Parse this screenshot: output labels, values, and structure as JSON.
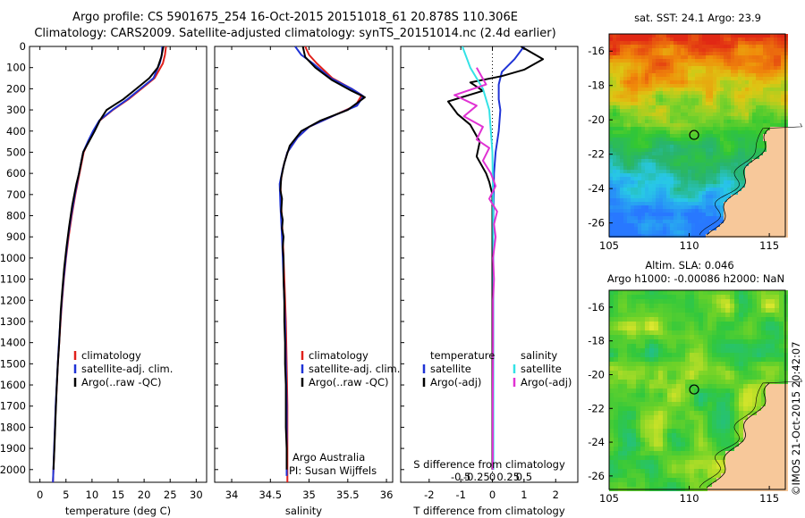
{
  "header": {
    "title_line1": "Argo profile: CS 5901675_254 16-Oct-2015 20151018_61 20.878S 110.306E",
    "title_line2": "Climatology: CARS2009. Satellite-adjusted climatology: synTS_20151014.nc (2.4d earlier)"
  },
  "colors": {
    "climatology": "#e0201b",
    "satellite": "#1f33d6",
    "argo": "#000000",
    "salinity_sat": "#33e2e6",
    "salinity_argo": "#e032d3"
  },
  "depth_axis": {
    "ticks": [
      0,
      100,
      200,
      300,
      400,
      500,
      600,
      700,
      800,
      900,
      1000,
      1100,
      1200,
      1300,
      1400,
      1500,
      1600,
      1700,
      1800,
      1900,
      2000
    ],
    "range": [
      0,
      2060
    ]
  },
  "chart_data": [
    {
      "id": "temperature",
      "type": "line",
      "xlabel": "temperature (deg C)",
      "xticks": [
        0,
        5,
        10,
        15,
        20,
        25,
        30
      ],
      "xlim": [
        -2,
        32
      ],
      "ylim": [
        0,
        2060
      ],
      "legend": [
        "climatology",
        "satellite-adj. clim.",
        "Argo(..raw -QC)"
      ],
      "series": [
        {
          "name": "climatology",
          "key": "climatology",
          "points": [
            [
              24.2,
              0
            ],
            [
              24,
              40
            ],
            [
              23.6,
              80
            ],
            [
              22,
              150
            ],
            [
              19.5,
              200
            ],
            [
              17,
              250
            ],
            [
              14,
              300
            ],
            [
              11.5,
              350
            ],
            [
              10.3,
              400
            ],
            [
              9.3,
              450
            ],
            [
              8.4,
              500
            ],
            [
              7.6,
              600
            ],
            [
              6.8,
              700
            ],
            [
              6.1,
              800
            ],
            [
              5.5,
              900
            ],
            [
              5,
              1000
            ],
            [
              4.6,
              1100
            ],
            [
              4.25,
              1200
            ],
            [
              3.95,
              1300
            ],
            [
              3.7,
              1400
            ],
            [
              3.45,
              1500
            ],
            [
              3.25,
              1600
            ],
            [
              3.05,
              1700
            ],
            [
              2.9,
              1800
            ],
            [
              2.75,
              1900
            ],
            [
              2.6,
              2000
            ],
            [
              2.5,
              2060
            ]
          ]
        },
        {
          "name": "satellite-adj. clim.",
          "key": "satellite",
          "points": [
            [
              23.5,
              0
            ],
            [
              23.4,
              40
            ],
            [
              23,
              80
            ],
            [
              21.8,
              150
            ],
            [
              19.3,
              200
            ],
            [
              16.8,
              250
            ],
            [
              13.9,
              300
            ],
            [
              11.4,
              350
            ],
            [
              10.2,
              400
            ],
            [
              9.2,
              450
            ],
            [
              8.3,
              500
            ],
            [
              7.5,
              600
            ],
            [
              6.7,
              700
            ],
            [
              6,
              800
            ],
            [
              5.4,
              900
            ],
            [
              4.95,
              1000
            ],
            [
              4.55,
              1100
            ],
            [
              4.2,
              1200
            ],
            [
              3.9,
              1300
            ],
            [
              3.65,
              1400
            ],
            [
              3.42,
              1500
            ],
            [
              3.22,
              1600
            ],
            [
              3.02,
              1700
            ],
            [
              2.87,
              1800
            ],
            [
              2.72,
              1900
            ],
            [
              2.58,
              2000
            ],
            [
              2.5,
              2060
            ]
          ]
        },
        {
          "name": "Argo(..raw -QC)",
          "key": "argo",
          "points": [
            [
              23.7,
              0
            ],
            [
              23.3,
              50
            ],
            [
              22.6,
              100
            ],
            [
              21,
              150
            ],
            [
              18.5,
              200
            ],
            [
              16,
              250
            ],
            [
              12.8,
              300
            ],
            [
              11.5,
              350
            ],
            [
              10.5,
              400
            ],
            [
              9.4,
              450
            ],
            [
              8.3,
              500
            ],
            [
              7.5,
              600
            ],
            [
              7,
              650
            ],
            [
              6.2,
              750
            ],
            [
              5.6,
              850
            ],
            [
              5.1,
              950
            ],
            [
              4.65,
              1050
            ],
            [
              4.3,
              1150
            ],
            [
              4,
              1250
            ],
            [
              3.7,
              1400
            ],
            [
              3.45,
              1500
            ],
            [
              3.2,
              1620
            ],
            [
              3,
              1750
            ],
            [
              2.8,
              1880
            ],
            [
              2.6,
              2000
            ]
          ]
        }
      ]
    },
    {
      "id": "salinity",
      "type": "line",
      "xlabel": "salinity",
      "xticks": [
        34,
        34.5,
        35,
        35.5,
        36
      ],
      "xlim": [
        33.78,
        36.08
      ],
      "ylim": [
        0,
        2060
      ],
      "legend": [
        "climatology",
        "satellite-adj. clim.",
        "Argo(..raw -QC)"
      ],
      "annotation": [
        "Argo Australia",
        "PI: Susan Wijffels"
      ],
      "series": [
        {
          "name": "climatology",
          "key": "climatology",
          "points": [
            [
              34.95,
              0
            ],
            [
              35,
              40
            ],
            [
              35.1,
              80
            ],
            [
              35.3,
              150
            ],
            [
              35.55,
              200
            ],
            [
              35.68,
              230
            ],
            [
              35.6,
              280
            ],
            [
              35.3,
              330
            ],
            [
              35,
              380
            ],
            [
              34.85,
              430
            ],
            [
              34.72,
              500
            ],
            [
              34.66,
              580
            ],
            [
              34.63,
              650
            ],
            [
              34.64,
              750
            ],
            [
              34.66,
              900
            ],
            [
              34.68,
              1100
            ],
            [
              34.7,
              1300
            ],
            [
              34.71,
              1500
            ],
            [
              34.72,
              1700
            ],
            [
              34.72,
              1900
            ],
            [
              34.72,
              2060
            ]
          ]
        },
        {
          "name": "satellite-adj. clim.",
          "key": "satellite",
          "points": [
            [
              34.82,
              0
            ],
            [
              34.9,
              40
            ],
            [
              35.05,
              80
            ],
            [
              35.28,
              150
            ],
            [
              35.55,
              200
            ],
            [
              35.7,
              235
            ],
            [
              35.62,
              280
            ],
            [
              35.3,
              330
            ],
            [
              35,
              380
            ],
            [
              34.85,
              430
            ],
            [
              34.72,
              500
            ],
            [
              34.66,
              580
            ],
            [
              34.62,
              650
            ],
            [
              34.63,
              750
            ],
            [
              34.65,
              900
            ],
            [
              34.67,
              1100
            ],
            [
              34.69,
              1300
            ],
            [
              34.7,
              1500
            ],
            [
              34.71,
              1700
            ],
            [
              34.71,
              1900
            ],
            [
              34.71,
              2030
            ]
          ]
        },
        {
          "name": "Argo(..raw -QC)",
          "key": "argo",
          "points": [
            [
              34.92,
              0
            ],
            [
              34.95,
              50
            ],
            [
              35.08,
              100
            ],
            [
              35.3,
              160
            ],
            [
              35.55,
              210
            ],
            [
              35.72,
              240
            ],
            [
              35.5,
              300
            ],
            [
              35.15,
              350
            ],
            [
              34.9,
              400
            ],
            [
              34.75,
              470
            ],
            [
              34.68,
              550
            ],
            [
              34.64,
              620
            ],
            [
              34.63,
              680
            ],
            [
              34.65,
              720
            ],
            [
              34.64,
              780
            ],
            [
              34.66,
              820
            ],
            [
              34.65,
              860
            ],
            [
              34.67,
              900
            ],
            [
              34.66,
              950
            ],
            [
              34.67,
              1000
            ],
            [
              34.67,
              1100
            ],
            [
              34.68,
              1200
            ],
            [
              34.68,
              1300
            ],
            [
              34.69,
              1400
            ],
            [
              34.69,
              1500
            ],
            [
              34.7,
              1600
            ],
            [
              34.7,
              1700
            ],
            [
              34.7,
              1800
            ],
            [
              34.71,
              1900
            ],
            [
              34.71,
              2000
            ]
          ]
        }
      ]
    },
    {
      "id": "differences",
      "type": "line",
      "xlabel": "T difference from climatology",
      "xlabel_top": "S difference from climatology",
      "xticks": [
        -2,
        -1,
        0,
        1,
        2
      ],
      "sticks": [
        -0.5,
        -0.25,
        0,
        0.25,
        0.5
      ],
      "xlim": [
        -2.9,
        2.7
      ],
      "ylim": [
        0,
        2060
      ],
      "legend_temperature": [
        "temperature",
        "satellite",
        "Argo(-adj)"
      ],
      "legend_salinity": [
        "salinity",
        "satellite",
        "Argo(-adj)"
      ],
      "series": [
        {
          "name": "T satellite",
          "key": "satellite",
          "points": [
            [
              1,
              0
            ],
            [
              0.7,
              60
            ],
            [
              0.3,
              120
            ],
            [
              0.2,
              180
            ],
            [
              0.2,
              250
            ],
            [
              0.25,
              300
            ],
            [
              0.2,
              400
            ],
            [
              0.1,
              500
            ],
            [
              0.05,
              600
            ],
            [
              0.03,
              800
            ],
            [
              0.02,
              1000
            ],
            [
              0.02,
              1500
            ],
            [
              0.02,
              2000
            ]
          ]
        },
        {
          "name": "T Argo(-adj)",
          "key": "argo",
          "points": [
            [
              0.9,
              0
            ],
            [
              1.6,
              60
            ],
            [
              1,
              110
            ],
            [
              0.3,
              140
            ],
            [
              -0.7,
              170
            ],
            [
              -0.3,
              210
            ],
            [
              -1.4,
              260
            ],
            [
              -1.1,
              320
            ],
            [
              -0.7,
              370
            ],
            [
              -0.4,
              450
            ],
            [
              -0.5,
              520
            ],
            [
              -0.2,
              600
            ],
            [
              -0.1,
              640
            ],
            [
              0,
              700
            ],
            [
              0,
              800
            ],
            [
              0,
              1000
            ],
            [
              0,
              1300
            ],
            [
              0,
              1600
            ],
            [
              0,
              2000
            ]
          ]
        },
        {
          "name": "S satellite",
          "key": "salinity_sat",
          "points": [
            [
              -0.95,
              0
            ],
            [
              -0.7,
              100
            ],
            [
              -0.3,
              200
            ],
            [
              -0.1,
              300
            ],
            [
              -0.05,
              400
            ],
            [
              0,
              500
            ],
            [
              0.02,
              700
            ],
            [
              0.03,
              1000
            ],
            [
              0.03,
              1500
            ],
            [
              0.03,
              2000
            ]
          ]
        },
        {
          "name": "S Argo(-adj)",
          "key": "salinity_argo",
          "points": [
            [
              -0.5,
              100
            ],
            [
              -0.2,
              180
            ],
            [
              -1.2,
              230
            ],
            [
              -0.5,
              280
            ],
            [
              -0.9,
              330
            ],
            [
              -0.3,
              380
            ],
            [
              -0.5,
              440
            ],
            [
              -0.1,
              480
            ],
            [
              -0.3,
              540
            ],
            [
              -0.05,
              600
            ],
            [
              0.1,
              660
            ],
            [
              -0.1,
              720
            ],
            [
              0.15,
              780
            ],
            [
              0.05,
              840
            ],
            [
              0.1,
              900
            ],
            [
              0.02,
              1000
            ],
            [
              0.05,
              1100
            ],
            [
              0.02,
              1200
            ],
            [
              0.02,
              1400
            ],
            [
              0.01,
              1700
            ],
            [
              0.01,
              2000
            ]
          ]
        }
      ]
    },
    {
      "id": "sst_map",
      "type": "heatmap",
      "title": "sat. SST: 24.1  Argo: 23.9",
      "xticks": [
        105,
        110,
        115
      ],
      "yticks": [
        -16,
        -18,
        -20,
        -22,
        -24,
        -26
      ],
      "xlim": [
        105,
        116
      ],
      "ylim": [
        -26.8,
        -15
      ],
      "profile_location": [
        110.306,
        -20.878
      ]
    },
    {
      "id": "sla_map",
      "type": "heatmap",
      "title": "Altim. SLA: 0.046",
      "subtitle": "Argo h1000: -0.00086  h2000: NaN",
      "xticks": [
        105,
        110,
        115
      ],
      "yticks": [
        -16,
        -18,
        -20,
        -22,
        -24,
        -26
      ],
      "xlim": [
        105,
        116
      ],
      "ylim": [
        -26.8,
        -15
      ],
      "profile_location": [
        110.306,
        -20.878
      ]
    }
  ],
  "credit": "©IMOS 21-Oct-2015 20:42:07"
}
